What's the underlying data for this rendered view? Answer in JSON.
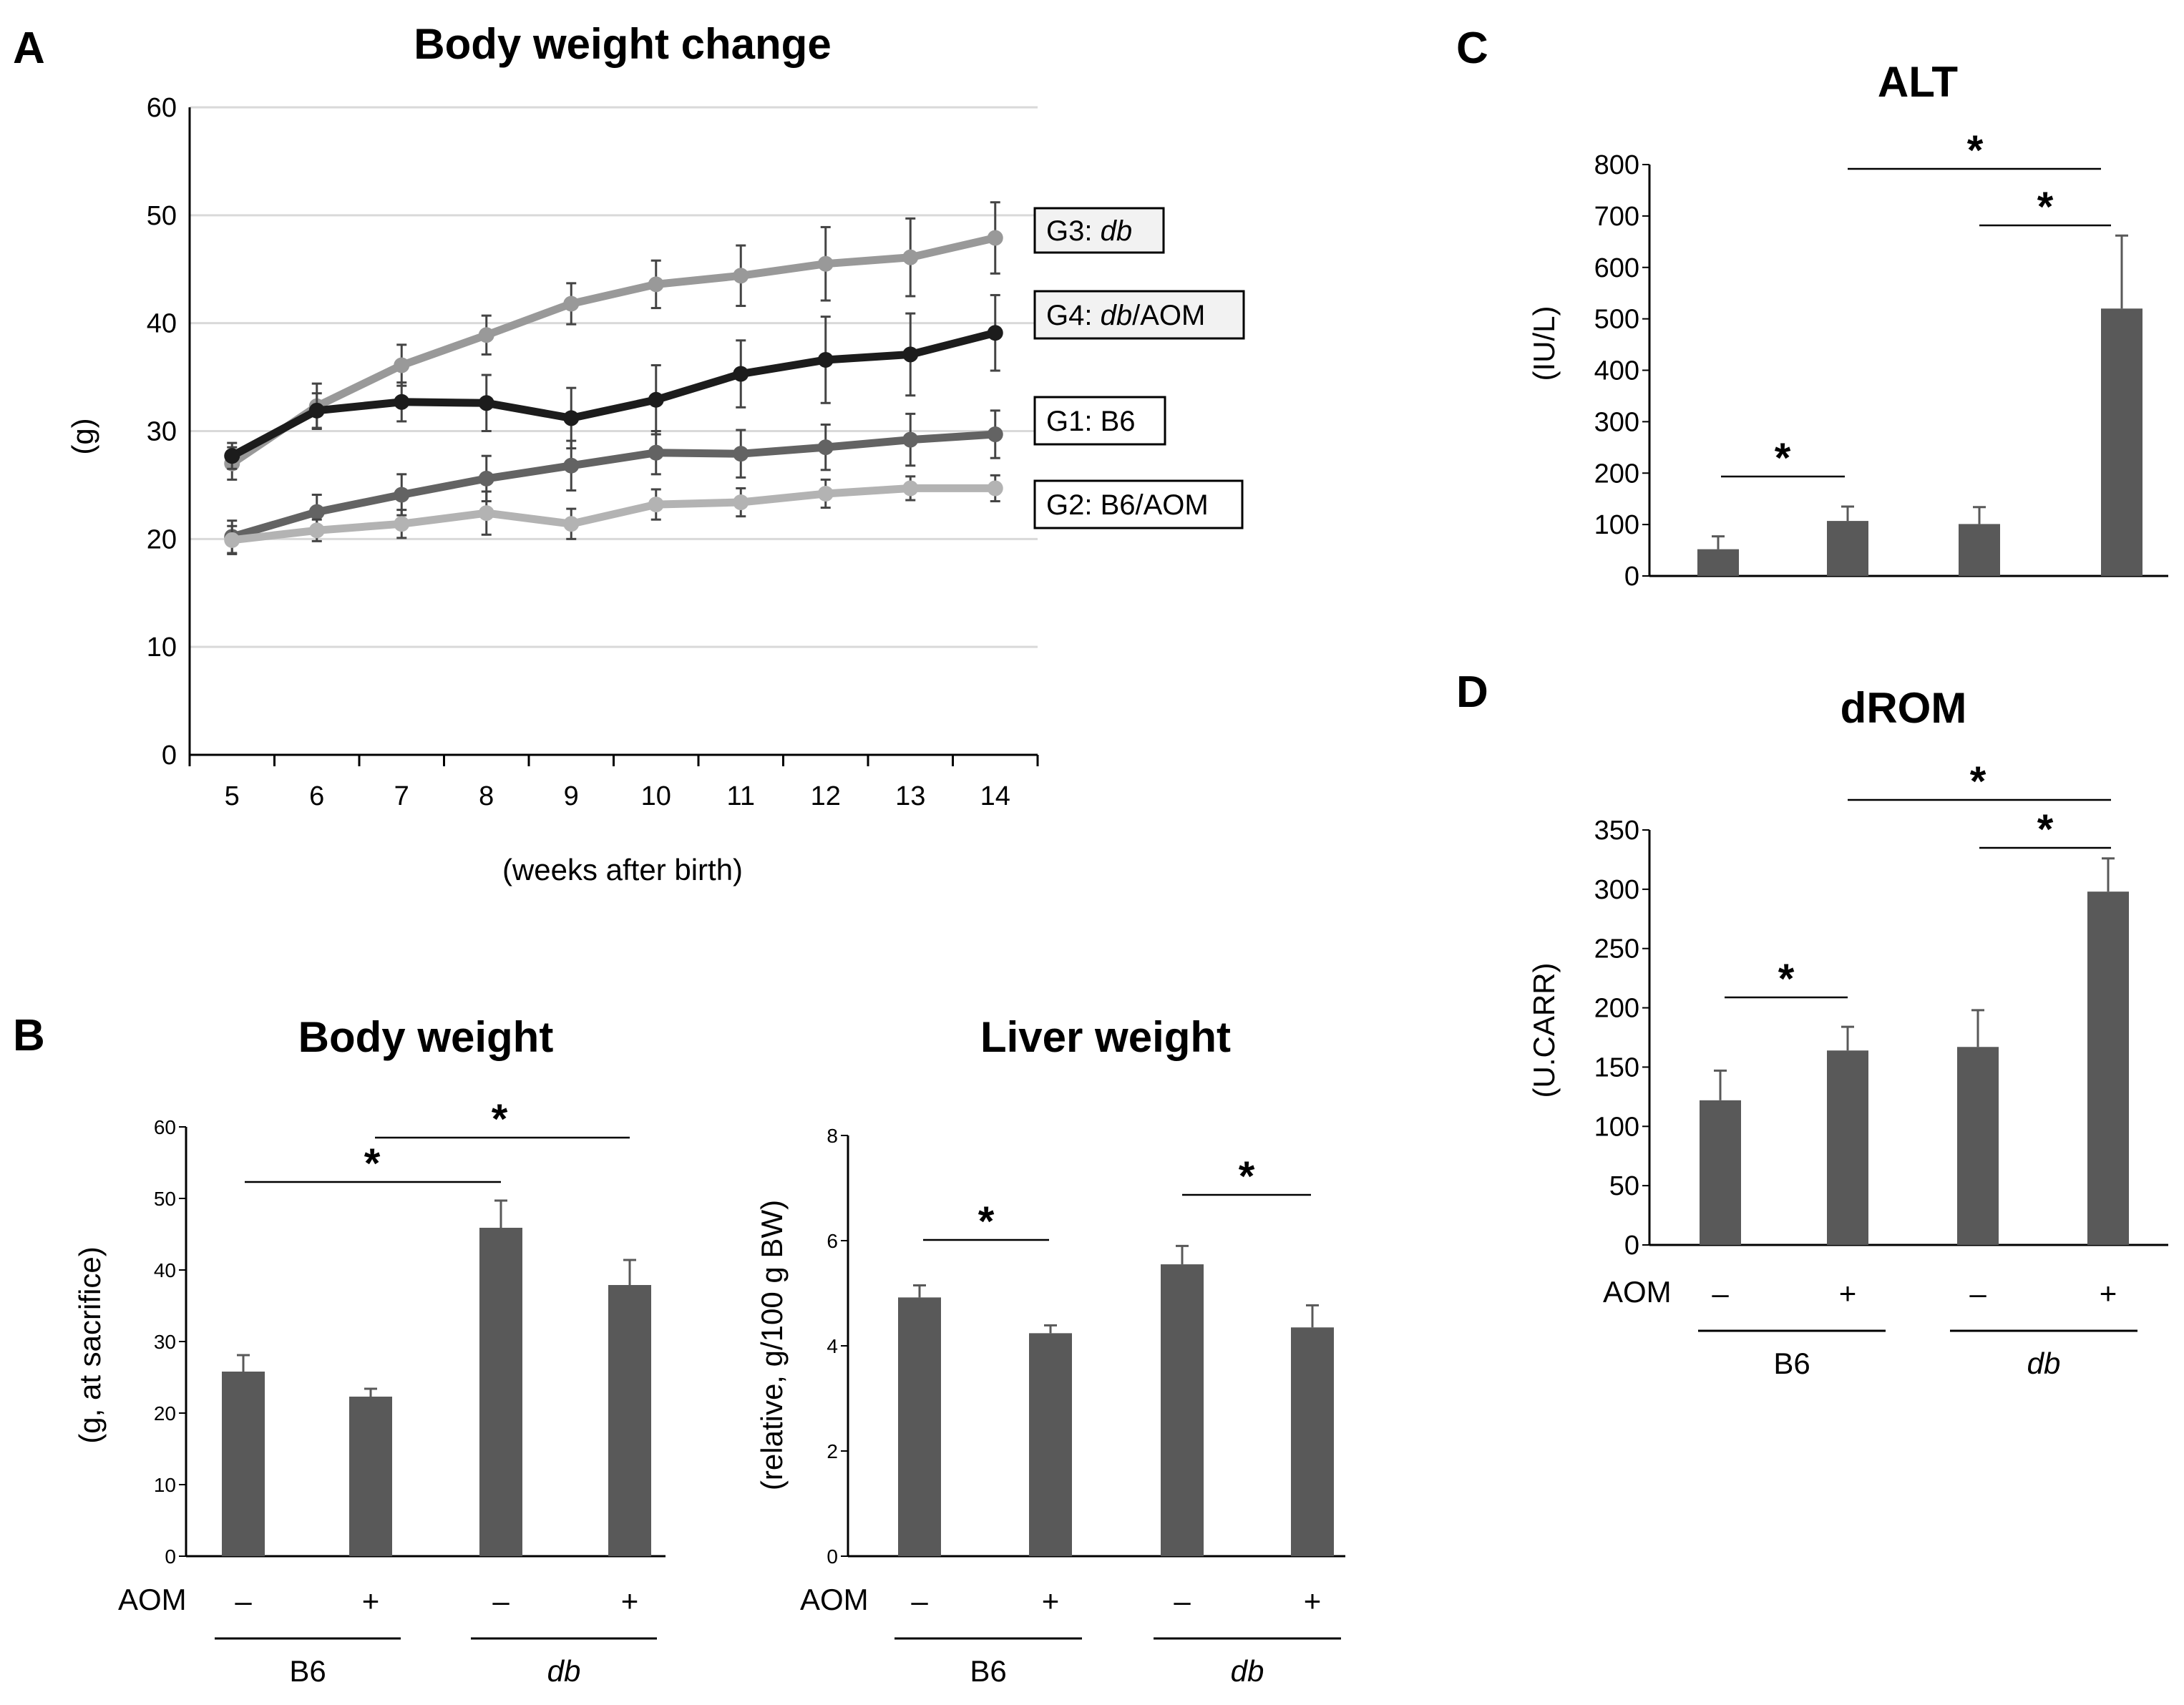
{
  "panels": {
    "a": "A",
    "b": "B",
    "c": "C",
    "d": "D"
  },
  "chart_data": [
    {
      "id": "A",
      "type": "line",
      "title": "Body weight change",
      "xlabel": "(weeks after birth)",
      "ylabel": "(g)",
      "ylim": [
        0,
        60
      ],
      "yticks": [
        0,
        10,
        20,
        30,
        40,
        50,
        60
      ],
      "x": [
        5,
        6,
        7,
        8,
        9,
        10,
        11,
        12,
        13,
        14
      ],
      "grid": true,
      "series": [
        {
          "name": "G1: B6",
          "label_pre": "G1: B6",
          "label_italic": "",
          "label_post": "",
          "color": "#636363",
          "values": [
            20.2,
            22.5,
            24.1,
            25.6,
            26.8,
            28.0,
            27.9,
            28.5,
            29.2,
            29.7
          ],
          "errors": [
            1.5,
            1.6,
            1.9,
            2.1,
            2.3,
            2.0,
            2.2,
            2.1,
            2.4,
            2.2
          ]
        },
        {
          "name": "G2: B6/AOM",
          "label_pre": "G2: B6/AOM",
          "label_italic": "",
          "label_post": "",
          "color": "#b3b3b3",
          "values": [
            19.9,
            20.8,
            21.4,
            22.4,
            21.4,
            23.2,
            23.4,
            24.2,
            24.7,
            24.7
          ],
          "errors": [
            1.3,
            1.0,
            1.3,
            2.0,
            1.4,
            1.4,
            1.3,
            1.3,
            1.1,
            1.2
          ]
        },
        {
          "name": "G3: db",
          "label_pre": "G3: ",
          "label_italic": "db",
          "label_post": "",
          "color": "#999999",
          "values": [
            27.0,
            32.3,
            36.1,
            38.9,
            41.8,
            43.6,
            44.4,
            45.5,
            46.1,
            47.9
          ],
          "errors": [
            1.5,
            2.1,
            1.9,
            1.8,
            1.9,
            2.2,
            2.8,
            3.4,
            3.6,
            3.3
          ]
        },
        {
          "name": "G4: db/AOM",
          "label_pre": "G4: ",
          "label_italic": "db",
          "label_post": "/AOM",
          "color": "#1c1c1c",
          "values": [
            27.7,
            31.9,
            32.7,
            32.6,
            31.2,
            32.9,
            35.3,
            36.6,
            37.1,
            39.1
          ],
          "errors": [
            1.2,
            1.6,
            1.8,
            2.6,
            2.8,
            3.2,
            3.1,
            4.0,
            3.8,
            3.5
          ]
        }
      ]
    },
    {
      "id": "B-body",
      "type": "bar",
      "title": "Body weight",
      "ylabel": "(g, at sacrifice)",
      "ylim": [
        0,
        60
      ],
      "yticks": [
        0,
        10,
        20,
        30,
        40,
        50,
        60
      ],
      "aom_label": "AOM",
      "aom": [
        "–",
        "+",
        "–",
        "+"
      ],
      "groups": [
        "B6",
        "db"
      ],
      "values": [
        25.8,
        22.3,
        45.9,
        37.9
      ],
      "errors": [
        2.3,
        1.1,
        3.8,
        3.5
      ],
      "significance": [
        "*",
        "*"
      ]
    },
    {
      "id": "B-liver",
      "type": "bar",
      "title": "Liver weight",
      "ylabel": "(relative, g/100 g BW)",
      "ylim": [
        0,
        8
      ],
      "yticks": [
        0,
        2,
        4,
        6,
        8
      ],
      "aom_label": "AOM",
      "aom": [
        "–",
        "+",
        "–",
        "+"
      ],
      "groups": [
        "B6",
        "db"
      ],
      "values": [
        4.92,
        4.24,
        5.55,
        4.35
      ],
      "errors": [
        0.23,
        0.15,
        0.35,
        0.42
      ],
      "significance": [
        "*",
        "*"
      ]
    },
    {
      "id": "C",
      "type": "bar",
      "title": "ALT",
      "ylabel": "(IU/L)",
      "ylim": [
        0,
        800
      ],
      "yticks": [
        0,
        100,
        200,
        300,
        400,
        500,
        600,
        700,
        800
      ],
      "values": [
        52,
        107,
        101,
        520
      ],
      "errors": [
        25,
        28,
        33,
        142
      ],
      "significance": [
        "*",
        "*",
        "*"
      ]
    },
    {
      "id": "D",
      "type": "bar",
      "title": "dROM",
      "ylabel": "(U.CARR)",
      "ylim": [
        0,
        350
      ],
      "yticks": [
        0,
        50,
        100,
        150,
        200,
        250,
        300,
        350
      ],
      "aom_label": "AOM",
      "aom": [
        "–",
        "+",
        "–",
        "+"
      ],
      "groups": [
        "B6",
        "db"
      ],
      "values": [
        122,
        164,
        167,
        298
      ],
      "errors": [
        25,
        20,
        31,
        28
      ],
      "significance": [
        "*",
        "*",
        "*"
      ]
    }
  ]
}
